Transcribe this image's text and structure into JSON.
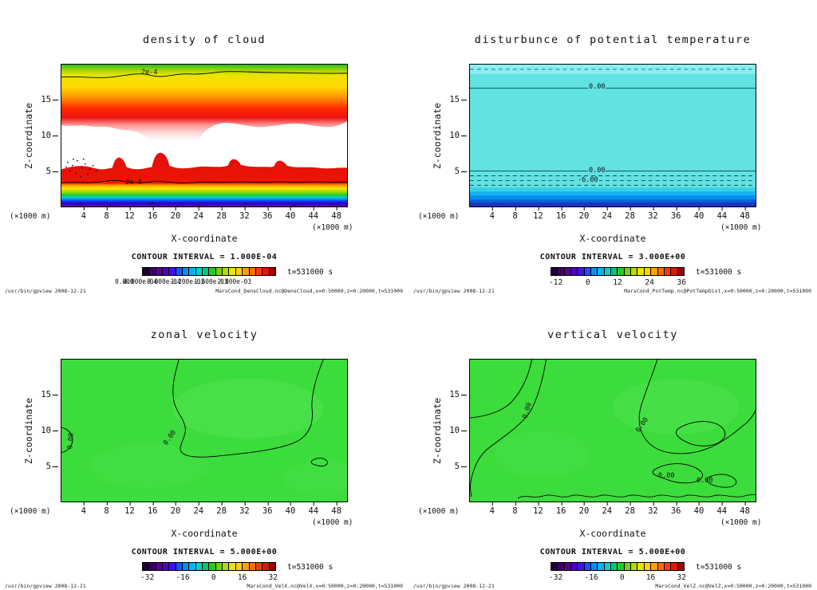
{
  "app": {
    "footer_left": "/usr/bin/gpview  2008-12-21"
  },
  "colormap": [
    "#1c0036",
    "#3c0060",
    "#5a0090",
    "#5000c8",
    "#3c14f0",
    "#1e50ff",
    "#0a8cff",
    "#00b4f0",
    "#00d2c8",
    "#00c878",
    "#28c828",
    "#78d200",
    "#b4dc00",
    "#e6e600",
    "#ffd200",
    "#ffa000",
    "#ff6e00",
    "#ff3c00",
    "#e61400",
    "#a00000"
  ],
  "panels": [
    {
      "title": "density of cloud",
      "xlabel": "X-coordinate",
      "ylabel": "Z-coordinate",
      "x_unit": "(×1000 m)",
      "y_unit": "(×1000 m)",
      "x_ticks": [
        4,
        8,
        12,
        16,
        20,
        24,
        28,
        32,
        36,
        40,
        44,
        48
      ],
      "y_ticks": [
        5,
        10,
        15
      ],
      "contour_interval_label": "CONTOUR INTERVAL = 1.000E-04",
      "time_label": "t=531000 s",
      "cb_labels": [
        "0.000",
        "4.000e-04",
        "8.000e-04",
        "1.200e-03",
        "1.600e-03",
        "2.000e-03"
      ],
      "contour_labels": [
        "2e-4",
        "2e-4"
      ],
      "source": "MarsCond_DensCloud.nc@DensCloud,x=0:50000,z=0:20000,t=531000"
    },
    {
      "title": "disturbunce of potential temperature",
      "xlabel": "X-coordinate",
      "ylabel": "Z-coordinate",
      "x_unit": "(×1000 m)",
      "y_unit": "(×1000 m)",
      "x_ticks": [
        4,
        8,
        12,
        16,
        20,
        24,
        28,
        32,
        36,
        40,
        44,
        48
      ],
      "y_ticks": [
        5,
        10,
        15
      ],
      "contour_interval_label": "CONTOUR INTERVAL = 3.000E+00",
      "time_label": "t=531000 s",
      "cb_labels": [
        "-12",
        "0",
        "12",
        "24",
        "36"
      ],
      "contour_labels": [
        "0.00",
        "0.00",
        "-6.00"
      ],
      "source": "MarsCond_PotTemp.nc@PotTempDist,x=0:50000,z=0:20000,t=531000"
    },
    {
      "title": "zonal velocity",
      "xlabel": "X-coordinate",
      "ylabel": "Z-coordinate",
      "x_unit": "(×1000 m)",
      "y_unit": "(×1000 m)",
      "x_ticks": [
        4,
        8,
        12,
        16,
        20,
        24,
        28,
        32,
        36,
        40,
        44,
        48
      ],
      "y_ticks": [
        5,
        10,
        15
      ],
      "contour_interval_label": "CONTOUR INTERVAL = 5.000E+00",
      "time_label": "t=531000 s",
      "cb_labels": [
        "-32",
        "-16",
        "0",
        "16",
        "32"
      ],
      "contour_labels": [
        "0.00",
        "0.00"
      ],
      "source": "MarsCond_VelX.nc@VelX,x=0:50000,z=0:20000,t=531000"
    },
    {
      "title": "vertical velocity",
      "xlabel": "X-coordinate",
      "ylabel": "Z-coordinate",
      "x_unit": "(×1000 m)",
      "y_unit": "(×1000 m)",
      "x_ticks": [
        4,
        8,
        12,
        16,
        20,
        24,
        28,
        32,
        36,
        40,
        44,
        48
      ],
      "y_ticks": [
        5,
        10,
        15
      ],
      "contour_interval_label": "CONTOUR INTERVAL = 5.000E+00",
      "time_label": "t=531000 s",
      "cb_labels": [
        "-32",
        "-16",
        "0",
        "16",
        "32"
      ],
      "contour_labels": [
        "0.00",
        "0.00",
        "0.00",
        "0.00"
      ],
      "source": "MarsCond_VelZ.nc@VelZ,x=0:50000,z=0:20000,t=531000"
    }
  ],
  "chart_data": [
    {
      "type": "heatmap",
      "title": "density of cloud",
      "xlabel": "X-coordinate (×1000 m)",
      "ylabel": "Z-coordinate (×1000 m)",
      "xlim": [
        0,
        50
      ],
      "ylim": [
        0,
        20
      ],
      "x_ticks": [
        4,
        8,
        12,
        16,
        20,
        24,
        28,
        32,
        36,
        40,
        44,
        48
      ],
      "y_ticks": [
        5,
        10,
        15
      ],
      "contour_interval": 0.0001,
      "labeled_contour_values": [
        0.0002,
        0.0002
      ],
      "colorbar_range": [
        0,
        0.002
      ],
      "time_s": 531000,
      "features": [
        {
          "region": "upper cloud layer (green/yellow/red shading)",
          "z_range": [
            13,
            19.5
          ],
          "value_range": [
            0.0002,
            0.002
          ]
        },
        {
          "region": "clear gap (white, below 1e-4)",
          "z_range": [
            5.5,
            13
          ],
          "value_range": [
            0,
            0.0001
          ]
        },
        {
          "region": "lower stratified cloud layer (red to purple bands)",
          "z_range": [
            0,
            5.5
          ],
          "value_range": [
            0.0002,
            0.002
          ]
        }
      ]
    },
    {
      "type": "heatmap",
      "title": "disturbunce of potential temperature",
      "xlabel": "X-coordinate (×1000 m)",
      "ylabel": "Z-coordinate (×1000 m)",
      "xlim": [
        0,
        50
      ],
      "ylim": [
        0,
        20
      ],
      "x_ticks": [
        4,
        8,
        12,
        16,
        20,
        24,
        28,
        32,
        36,
        40,
        44,
        48
      ],
      "y_ticks": [
        5,
        10,
        15
      ],
      "contour_interval": 3.0,
      "labeled_contour_values": [
        0.0,
        0.0,
        -6.0
      ],
      "colorbar_ticks": [
        -12,
        0,
        12,
        24,
        36
      ],
      "time_s": 531000,
      "features": [
        {
          "region": "near-uniform interior (cyan)",
          "z_range": [
            3.5,
            17.5
          ],
          "value": 0
        },
        {
          "region": "zero contour lines",
          "z_values": [
            17.5,
            3.2
          ]
        },
        {
          "region": "negative disturbance near surface (blue bands)",
          "z_range": [
            0,
            3
          ],
          "value_range": [
            -12,
            -3
          ]
        }
      ]
    },
    {
      "type": "heatmap",
      "title": "zonal velocity",
      "xlabel": "X-coordinate (×1000 m)",
      "ylabel": "Z-coordinate (×1000 m)",
      "xlim": [
        0,
        50
      ],
      "ylim": [
        0,
        20
      ],
      "x_ticks": [
        4,
        8,
        12,
        16,
        20,
        24,
        28,
        32,
        36,
        40,
        44,
        48
      ],
      "y_ticks": [
        5,
        10,
        15
      ],
      "contour_interval": 5.0,
      "labeled_contour_values": [
        0.0,
        0.0
      ],
      "colorbar_ticks": [
        -32,
        -16,
        0,
        16,
        32
      ],
      "time_s": 531000,
      "features": [
        {
          "region": "entire domain near zero (uniform green) with meandering 0.00 contour",
          "value_range": [
            -5,
            5
          ]
        }
      ]
    },
    {
      "type": "heatmap",
      "title": "vertical velocity",
      "xlabel": "X-coordinate (×1000 m)",
      "ylabel": "Z-coordinate (×1000 m)",
      "xlim": [
        0,
        50
      ],
      "ylim": [
        0,
        20
      ],
      "x_ticks": [
        4,
        8,
        12,
        16,
        20,
        24,
        28,
        32,
        36,
        40,
        44,
        48
      ],
      "y_ticks": [
        5,
        10,
        15
      ],
      "contour_interval": 5.0,
      "labeled_contour_values": [
        0.0,
        0.0,
        0.0,
        0.0
      ],
      "colorbar_ticks": [
        -32,
        -16,
        0,
        16,
        32
      ],
      "time_s": 531000,
      "features": [
        {
          "region": "entire domain near zero (uniform green) with several 0.00 contour loops and scalloped contours near surface",
          "value_range": [
            -5,
            5
          ]
        }
      ]
    }
  ]
}
